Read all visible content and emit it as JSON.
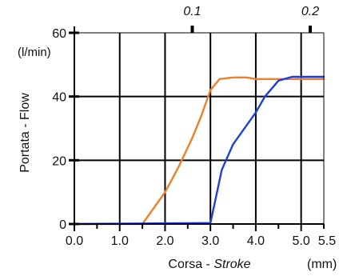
{
  "chart_data": {
    "type": "line",
    "xlabel": "Corsa - ",
    "xlabel_italic": "Stroke",
    "xunit": "(mm)",
    "ylabel": "Portata - Flow",
    "yunit": "(l/min)",
    "xlim": [
      0,
      5.5
    ],
    "ylim": [
      0,
      60
    ],
    "x_ticks": [
      {
        "value": 0,
        "label": "0.0"
      },
      {
        "value": 1,
        "label": "1.0"
      },
      {
        "value": 2,
        "label": "2.0"
      },
      {
        "value": 3,
        "label": "3.0"
      },
      {
        "value": 4,
        "label": "4.0"
      },
      {
        "value": 5,
        "label": "5.0"
      },
      {
        "value": 5.5,
        "label": "5.5"
      }
    ],
    "y_ticks": [
      {
        "value": 0,
        "label": "0"
      },
      {
        "value": 20,
        "label": "20"
      },
      {
        "value": 40,
        "label": "40"
      },
      {
        "value": 60,
        "label": "60"
      }
    ],
    "top_axis_ticks": [
      {
        "x": 2.6,
        "label": "0.1"
      },
      {
        "x": 5.2,
        "label": "0.2"
      }
    ],
    "grid": true,
    "series": [
      {
        "color": "#f07f2a",
        "x": [
          0,
          1.5,
          1.7,
          2.0,
          2.3,
          2.6,
          2.8,
          3.0,
          3.2,
          3.5,
          3.8,
          4.0,
          4.5,
          5.0,
          5.5
        ],
        "y": [
          0,
          0,
          4,
          10,
          18,
          27,
          34,
          42,
          45.5,
          46,
          46,
          45.5,
          45.5,
          45.5,
          45.5
        ]
      },
      {
        "color": "#1f3fdc",
        "x": [
          0,
          3.0,
          3.25,
          3.5,
          4.0,
          4.2,
          4.5,
          4.8,
          5.0,
          5.5
        ],
        "y": [
          0,
          0.3,
          17,
          25,
          35,
          40,
          45,
          46.2,
          46.2,
          46.2
        ]
      }
    ]
  }
}
